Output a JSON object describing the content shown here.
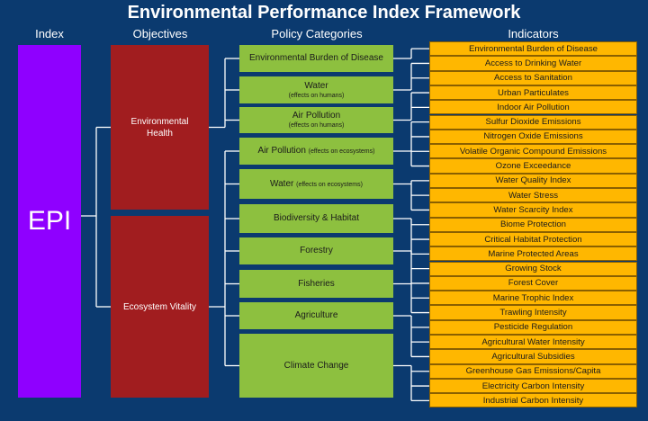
{
  "title": "Environmental Performance Index Framework",
  "headers": [
    "Index",
    "Objectives",
    "Policy Categories",
    "Indicators"
  ],
  "index": "EPI",
  "objectives": [
    {
      "label": "Environmental Health",
      "categories": [
        {
          "label": "Environmental Burden of Disease",
          "indicators": [
            "Environmental Burden of Disease"
          ]
        },
        {
          "label": "Water",
          "sublabel": "(effects on humans)",
          "indicators": [
            "Access to Drinking Water",
            "Access to Sanitation"
          ]
        },
        {
          "label": "Air Pollution",
          "sublabel": "(effects on humans)",
          "indicators": [
            "Urban Particulates",
            "Indoor Air Pollution"
          ]
        }
      ]
    },
    {
      "label": "Ecosystem Vitality",
      "categories": [
        {
          "label": "Air Pollution",
          "sublabel": "(effects on ecosystems)",
          "indicators": [
            "Sulfur Dioxide Emissions",
            "Nitrogen Oxide Emissions",
            "Volatile Organic Compound Emissions",
            "Ozone Exceedance"
          ]
        },
        {
          "label": "Water",
          "sublabel": "(effects on ecosystems)",
          "indicators": [
            "Water Quality Index",
            "Water Stress",
            "Water Scarcity Index"
          ]
        },
        {
          "label": "Biodiversity & Habitat",
          "indicators": [
            "Biome Protection",
            "Critical Habitat Protection",
            "Marine Protected Areas"
          ]
        },
        {
          "label": "Forestry",
          "indicators": [
            "Growing Stock",
            "Forest Cover"
          ]
        },
        {
          "label": "Fisheries",
          "indicators": [
            "Marine Trophic Index",
            "Trawling Intensity"
          ]
        },
        {
          "label": "Agriculture",
          "indicators": [
            "Pesticide Regulation",
            "Agricultural Water Intensity",
            "Agricultural Subsidies"
          ]
        },
        {
          "label": "Climate Change",
          "indicators": [
            "Greenhouse Gas Emissions/Capita",
            "Electricity Carbon Intensity",
            "Industrial Carbon Intensity"
          ]
        }
      ]
    }
  ]
}
